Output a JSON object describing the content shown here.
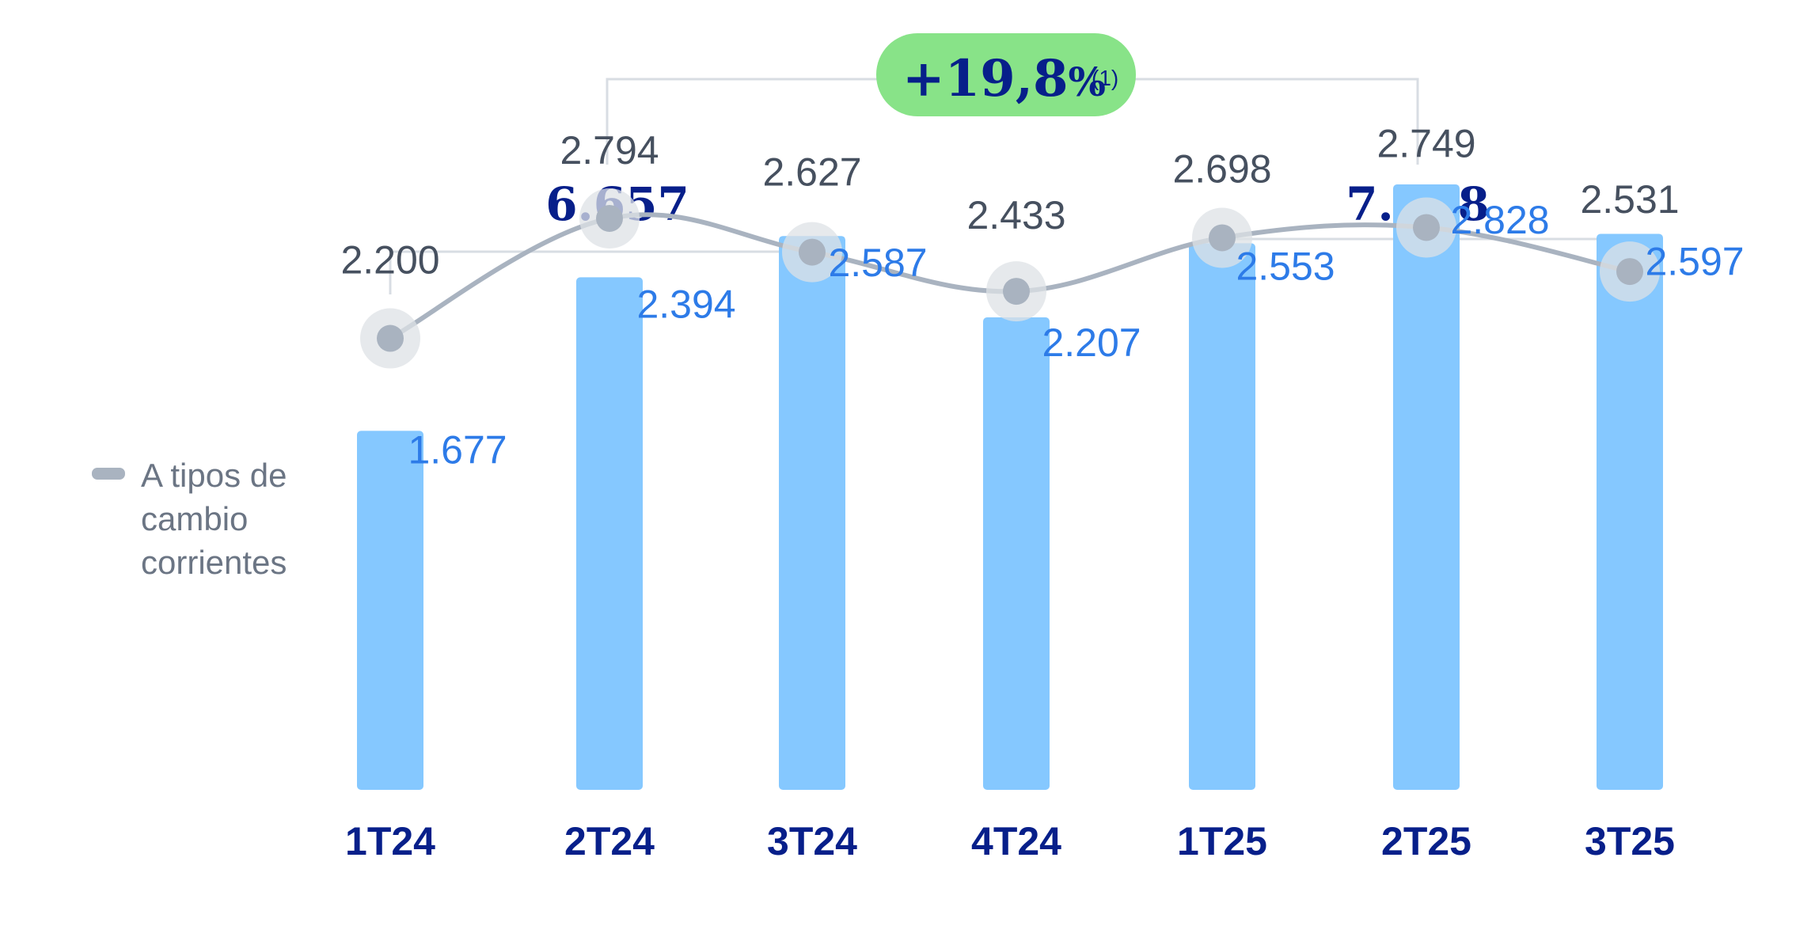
{
  "chart_data": {
    "type": "bar",
    "categories": [
      "1T24",
      "2T24",
      "3T24",
      "4T24",
      "1T25",
      "2T25",
      "3T25"
    ],
    "series": [
      {
        "values": [
          1677,
          2394,
          2587,
          2207,
          2553,
          2828,
          2597
        ],
        "labels": [
          "1.677",
          "2.394",
          "2.587",
          "2.207",
          "2.553",
          "2.828",
          "2.597"
        ]
      },
      {
        "name": "A tipos de cambio corrientes",
        "type": "line",
        "values": [
          2200,
          2794,
          2627,
          2433,
          2698,
          2749,
          2531
        ],
        "labels": [
          "2.200",
          "2.794",
          "2.627",
          "2.433",
          "2.698",
          "2.749",
          "2.531"
        ]
      }
    ],
    "legend": {
      "lines": [
        "A tipos de",
        "cambio",
        "corrientes"
      ],
      "placement": "left"
    },
    "groups": [
      {
        "label": "6.657",
        "from": "1T24",
        "to": "3T24"
      },
      {
        "label": "7.978",
        "from": "1T25",
        "to": "3T25"
      }
    ],
    "growth": {
      "value": "+19,8",
      "unit": "%",
      "note": "(1)"
    },
    "colors": {
      "bar": "#85c8ff",
      "bar_label": "#2d7be8",
      "line": "#a9b3c0",
      "line_label": "#46505f",
      "category": "#071f8a",
      "badge": "#88e388",
      "bracket": "#d8dde3",
      "legend_text": "#6b7584"
    }
  }
}
